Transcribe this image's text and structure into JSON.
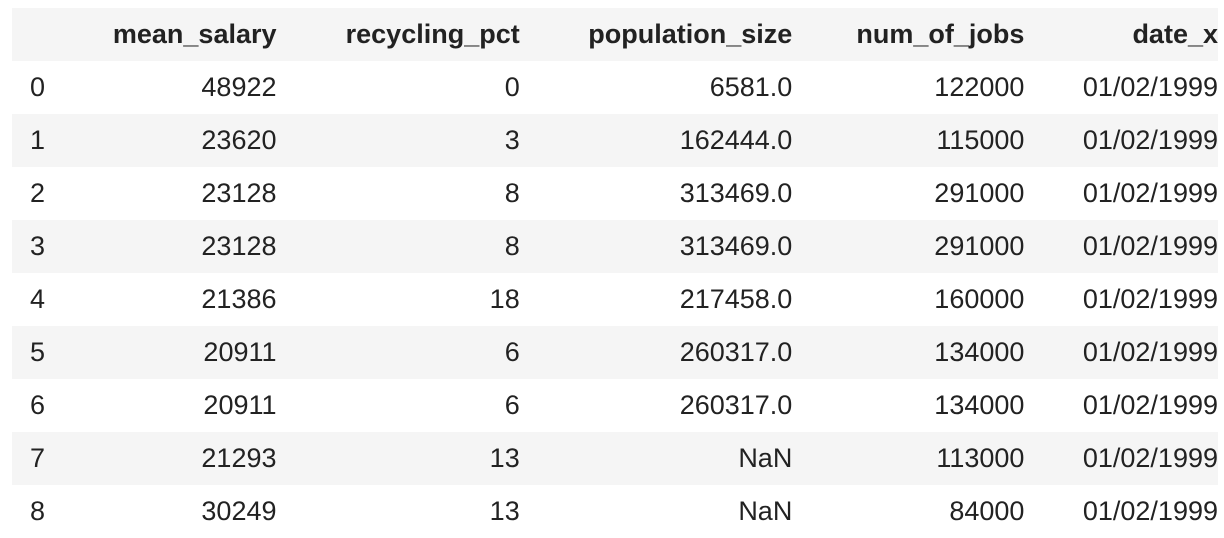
{
  "table": {
    "index_header": "",
    "columns": [
      "mean_salary",
      "recycling_pct",
      "population_size",
      "num_of_jobs",
      "date_x"
    ],
    "rows": [
      {
        "index": "0",
        "cells": [
          "48922",
          "0",
          "6581.0",
          "122000",
          "01/02/1999"
        ]
      },
      {
        "index": "1",
        "cells": [
          "23620",
          "3",
          "162444.0",
          "115000",
          "01/02/1999"
        ]
      },
      {
        "index": "2",
        "cells": [
          "23128",
          "8",
          "313469.0",
          "291000",
          "01/02/1999"
        ]
      },
      {
        "index": "3",
        "cells": [
          "23128",
          "8",
          "313469.0",
          "291000",
          "01/02/1999"
        ]
      },
      {
        "index": "4",
        "cells": [
          "21386",
          "18",
          "217458.0",
          "160000",
          "01/02/1999"
        ]
      },
      {
        "index": "5",
        "cells": [
          "20911",
          "6",
          "260317.0",
          "134000",
          "01/02/1999"
        ]
      },
      {
        "index": "6",
        "cells": [
          "20911",
          "6",
          "260317.0",
          "134000",
          "01/02/1999"
        ]
      },
      {
        "index": "7",
        "cells": [
          "21293",
          "13",
          "NaN",
          "113000",
          "01/02/1999"
        ]
      },
      {
        "index": "8",
        "cells": [
          "30249",
          "13",
          "NaN",
          "84000",
          "01/02/1999"
        ]
      }
    ]
  }
}
